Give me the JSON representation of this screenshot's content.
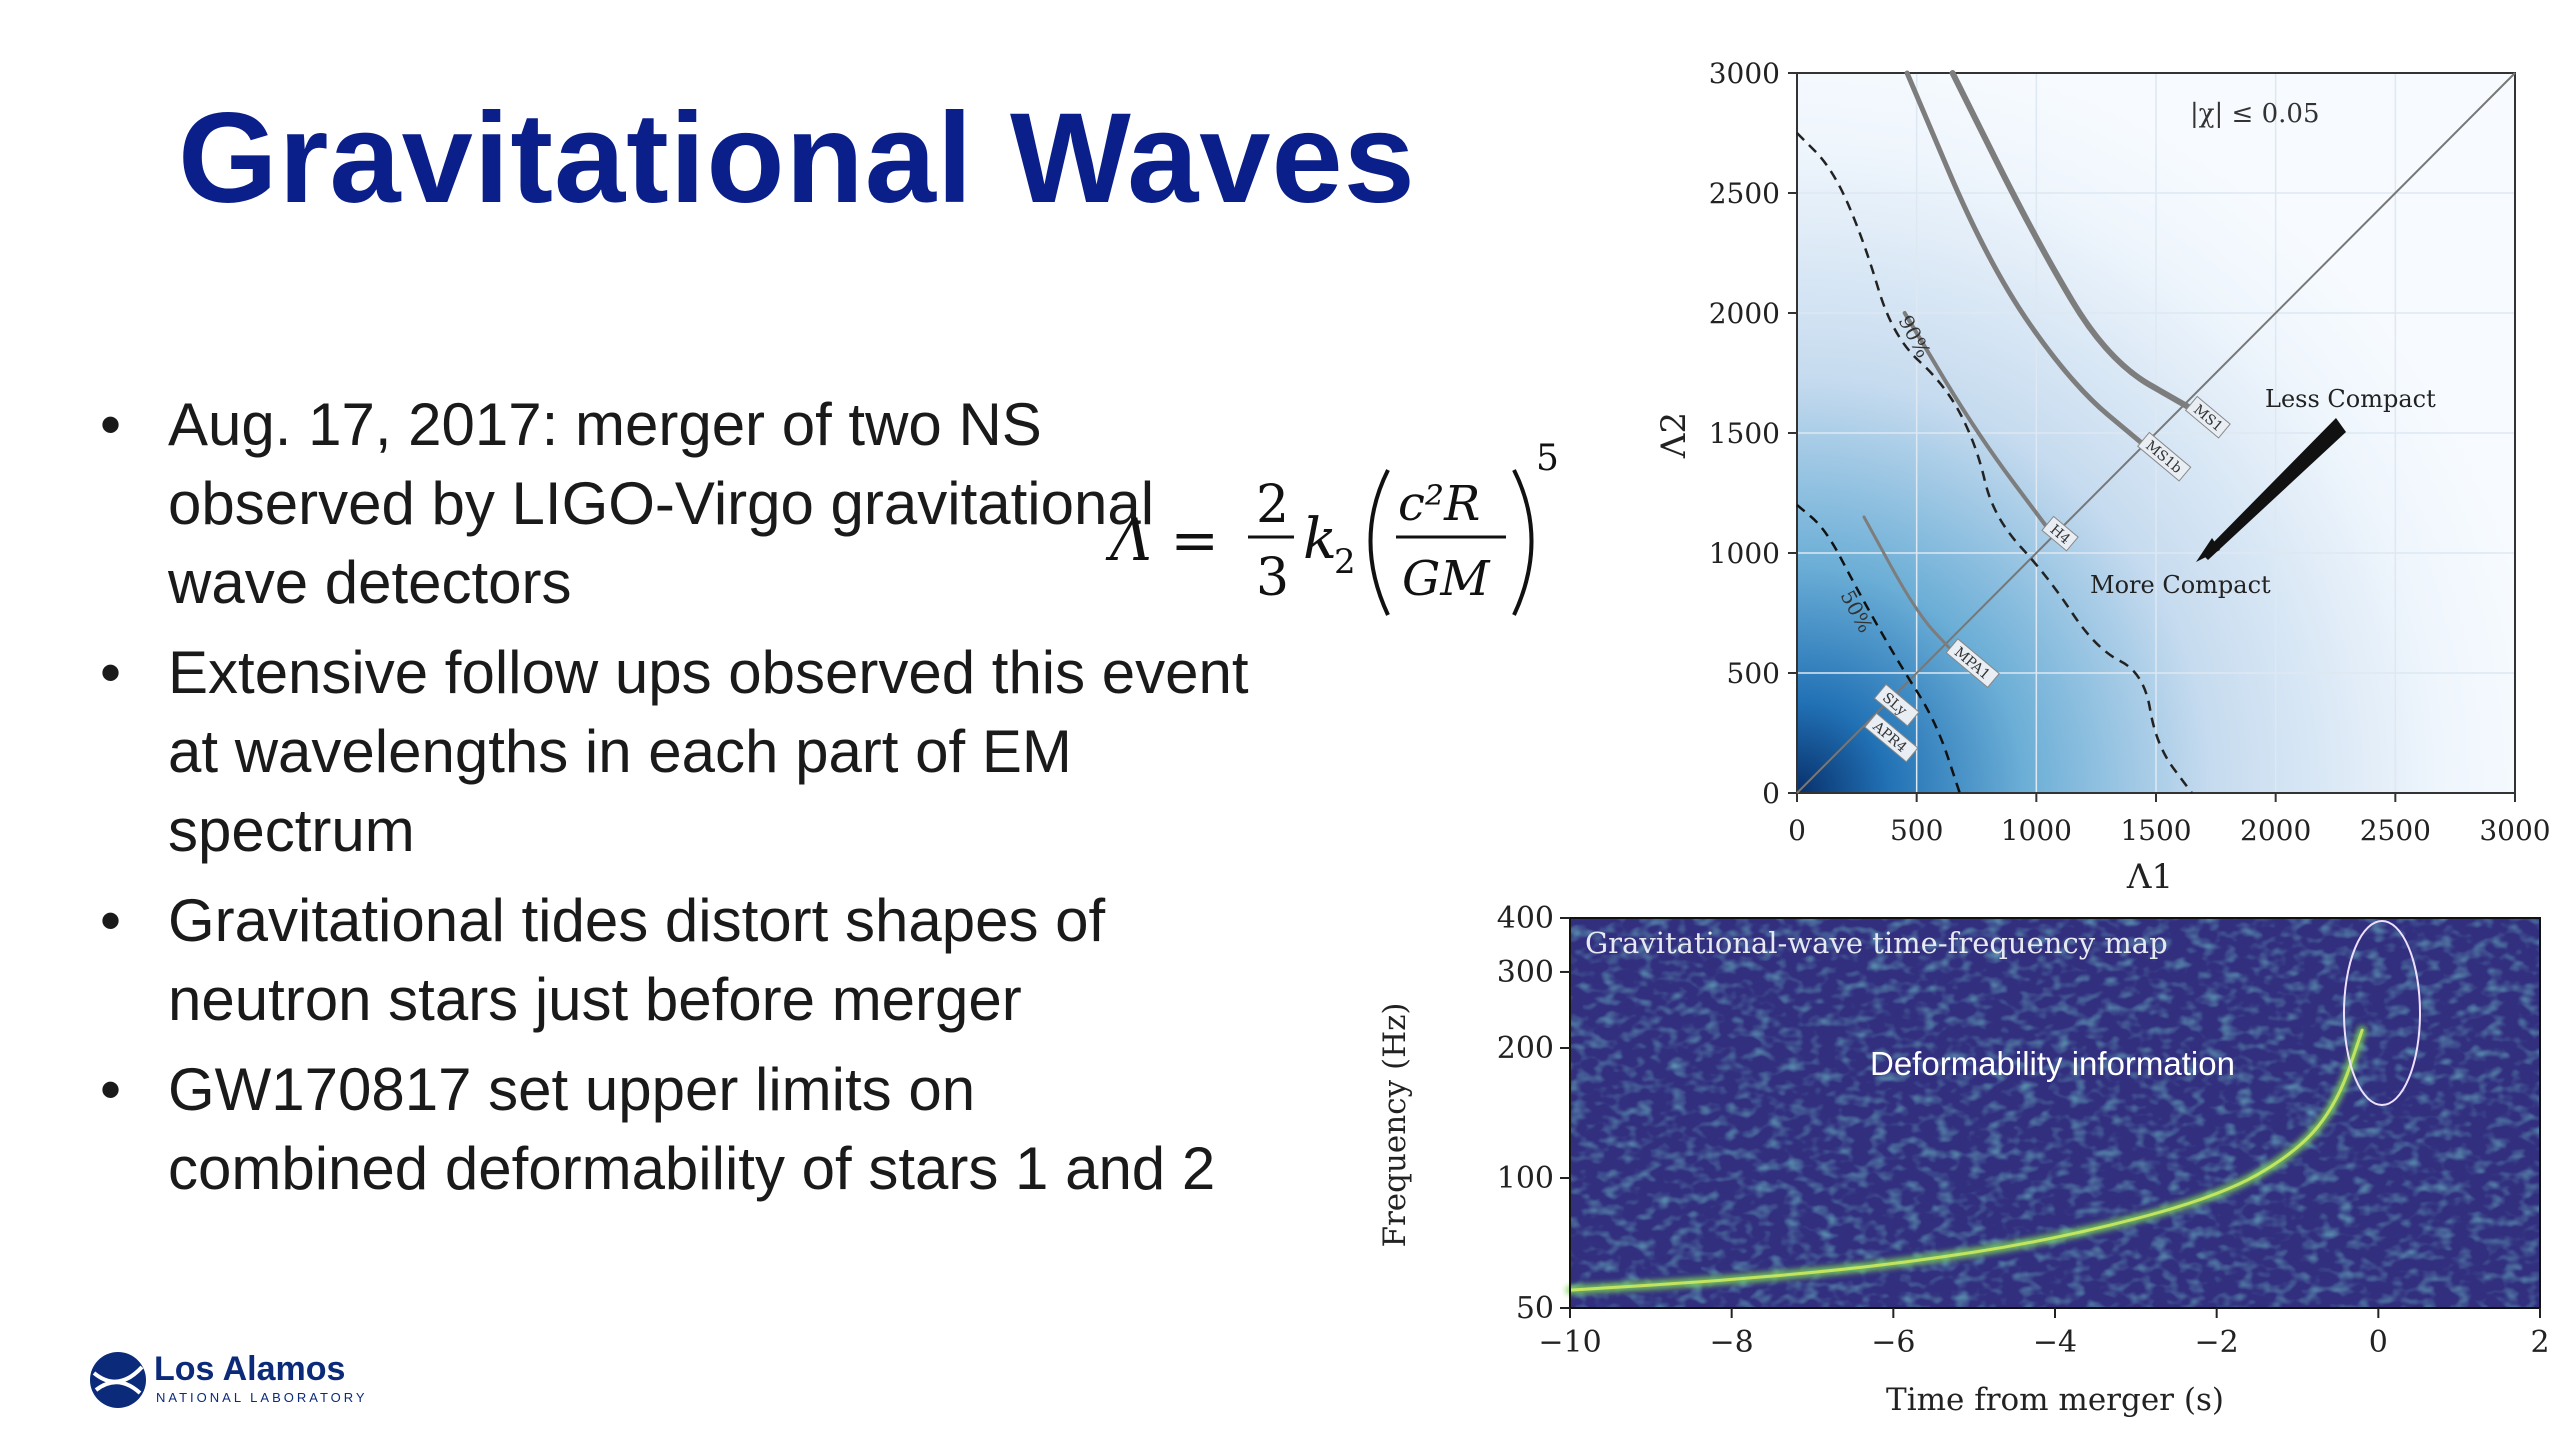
{
  "title": "Gravitational Waves",
  "bullets": [
    "Aug. 17, 2017: merger of two NS observed by LIGO-Virgo gravitational wave detectors",
    "Extensive follow ups observed this event at wavelengths in each part of EM spectrum",
    "Gravitational tides distort shapes of neutron stars just before merger",
    "GW170817 set upper limits on combined deformability of stars 1 and 2"
  ],
  "formula": {
    "lhs": "Λ = ",
    "num": "2",
    "den": "3",
    "k": "k",
    "k_sub": "2",
    "inner_num": "c²R",
    "inner_den": "GM",
    "exponent": "5"
  },
  "logo": {
    "name": "Los Alamos",
    "sub": "NATIONAL LABORATORY"
  },
  "chart_data": [
    {
      "type": "contour",
      "xlabel": "Λ1",
      "ylabel": "Λ2",
      "xlim": [
        0,
        3000
      ],
      "ylim": [
        0,
        3000
      ],
      "xticks": [
        "0",
        "500",
        "1000",
        "1500",
        "2000",
        "2500",
        "3000"
      ],
      "yticks": [
        "0",
        "500",
        "1000",
        "1500",
        "2000",
        "2500",
        "3000"
      ],
      "annotations": {
        "spin": "|χ| ≤ 0.05",
        "less": "Less Compact",
        "more": "More Compact",
        "c90": "90%",
        "c50": "50%"
      },
      "eos_curves": [
        {
          "name": "MS1",
          "points": [
            [
              650,
              3000
            ],
            [
              1000,
              2300
            ],
            [
              1300,
              1800
            ],
            [
              1650,
              1600
            ]
          ]
        },
        {
          "name": "MS1b",
          "points": [
            [
              460,
              3000
            ],
            [
              800,
              2200
            ],
            [
              1150,
              1700
            ],
            [
              1450,
              1450
            ]
          ]
        },
        {
          "name": "H4",
          "points": [
            [
              450,
              2000
            ],
            [
              750,
              1500
            ],
            [
              1050,
              1100
            ]
          ]
        },
        {
          "name": "MPA1",
          "points": [
            [
              280,
              1150
            ],
            [
              500,
              750
            ],
            [
              650,
              590
            ]
          ]
        },
        {
          "name": "SLy",
          "points": [
            [
              350,
              400
            ]
          ]
        },
        {
          "name": "APR4",
          "points": [
            [
              310,
              280
            ]
          ]
        }
      ],
      "contour_90": [
        [
          0,
          2750
        ],
        [
          150,
          2600
        ],
        [
          280,
          2300
        ],
        [
          400,
          1900
        ],
        [
          620,
          1700
        ],
        [
          750,
          1450
        ],
        [
          820,
          1150
        ],
        [
          1050,
          900
        ],
        [
          1250,
          600
        ],
        [
          1450,
          500
        ],
        [
          1500,
          200
        ],
        [
          1650,
          0
        ]
      ],
      "contour_50": [
        [
          0,
          1200
        ],
        [
          120,
          1100
        ],
        [
          250,
          850
        ],
        [
          420,
          550
        ],
        [
          580,
          300
        ],
        [
          680,
          0
        ]
      ]
    },
    {
      "type": "heatmap",
      "title": "Gravitational-wave time-frequency map",
      "xlabel": "Time from merger (s)",
      "ylabel": "Frequency (Hz)",
      "xlim": [
        -10,
        2
      ],
      "ylim": [
        50,
        400
      ],
      "xticks": [
        "−10",
        "−8",
        "−6",
        "−4",
        "−2",
        "0",
        "2"
      ],
      "yticks": [
        "50",
        "100",
        "200",
        "300",
        "400"
      ],
      "annotation": "Deformability information",
      "track": [
        [
          -10,
          55
        ],
        [
          -8,
          58
        ],
        [
          -6,
          63
        ],
        [
          -4,
          72
        ],
        [
          -2,
          90
        ],
        [
          -1,
          115
        ],
        [
          -0.5,
          150
        ],
        [
          -0.2,
          220
        ]
      ]
    }
  ]
}
